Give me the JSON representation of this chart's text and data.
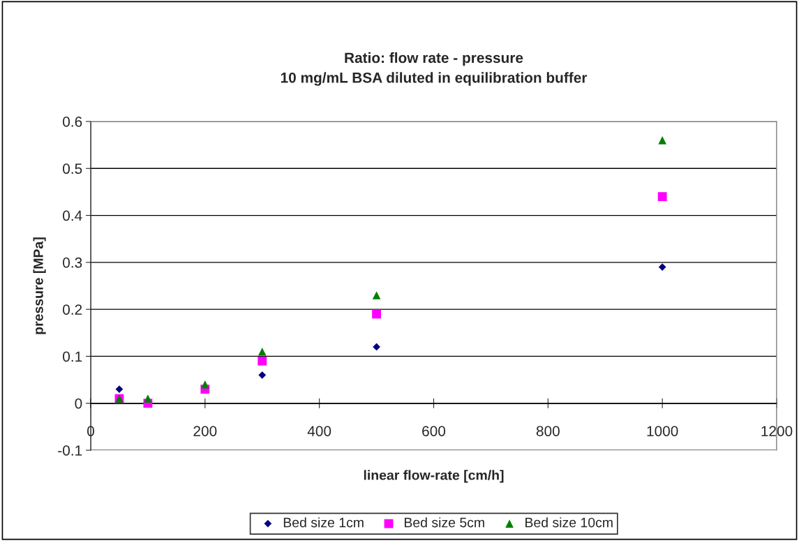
{
  "chart_data": {
    "type": "scatter",
    "title": "Ratio: flow rate - pressure\n10 mg/mL BSA diluted in equilibration buffer",
    "xlabel": "linear flow-rate [cm/h]",
    "ylabel": "pressure [MPa]",
    "x": [
      50,
      100,
      200,
      300,
      500,
      1000
    ],
    "series": [
      {
        "name": "Bed size 1cm",
        "color": "#000080",
        "marker": "diamond",
        "values": [
          0.03,
          null,
          null,
          0.06,
          0.12,
          0.29
        ]
      },
      {
        "name": "Bed size 5cm",
        "color": "#ff00ff",
        "marker": "square",
        "values": [
          0.01,
          0.0,
          0.03,
          0.09,
          0.19,
          0.44
        ]
      },
      {
        "name": "Bed size 10cm",
        "color": "#008000",
        "marker": "triangle",
        "values": [
          0.01,
          0.01,
          0.04,
          0.11,
          0.23,
          0.56
        ]
      }
    ],
    "xlim": [
      0,
      1200
    ],
    "xticks": [
      0,
      200,
      400,
      600,
      800,
      1000,
      1200
    ],
    "ylim": [
      -0.1,
      0.6
    ],
    "yticks": [
      -0.1,
      0,
      0.1,
      0.2,
      0.3,
      0.4,
      0.5,
      0.6
    ],
    "grid": "y",
    "legend": "bottom"
  }
}
